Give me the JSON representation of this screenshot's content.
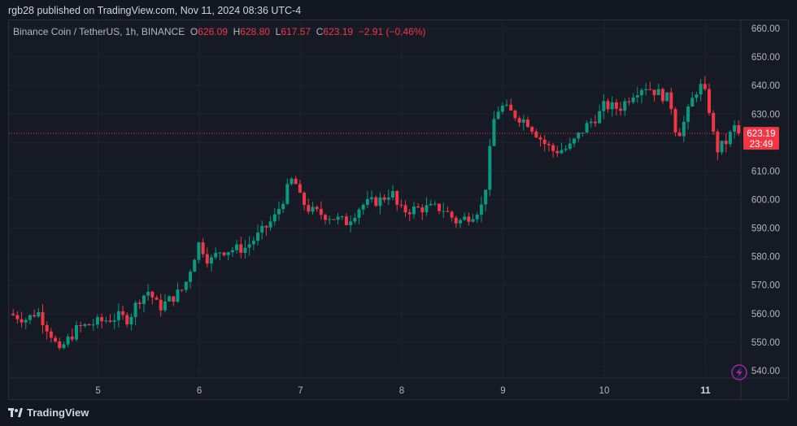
{
  "publisher": "rgb28 published on TradingView.com, Nov 11, 2024 08:36 UTC-4",
  "legend": {
    "symbol": "Binance Coin / TetherUS, 1h, BINANCE",
    "o_label": "O",
    "o": "626.09",
    "h_label": "H",
    "h": "628.80",
    "l_label": "L",
    "l": "617.57",
    "c_label": "C",
    "c": "623.19",
    "change": "−2.91 (−0.46%)"
  },
  "price_label": {
    "price": "623.19",
    "countdown": "23:49"
  },
  "footer": {
    "brand": "TradingView",
    "icon": "tradingview-logo-icon"
  },
  "colors": {
    "up": "#089981",
    "down": "#f23645",
    "bg": "#161a25",
    "grid": "#1f2330"
  },
  "chart_data": {
    "type": "candlestick",
    "interval": "1h",
    "yaxis": {
      "ticks": [
        540,
        550,
        560,
        570,
        580,
        590,
        600,
        610,
        620,
        630,
        640,
        650,
        660
      ],
      "ylim": [
        538,
        662
      ]
    },
    "xaxis": {
      "ticks": [
        "5",
        "6",
        "7",
        "8",
        "9",
        "10",
        "11"
      ],
      "tick_days": [
        5,
        6,
        7,
        8,
        9,
        10,
        11
      ],
      "range_days": [
        4.12,
        11.35
      ]
    },
    "last_price": 623.19,
    "path_keypoints": [
      [
        4.12,
        560
      ],
      [
        4.3,
        558
      ],
      [
        4.4,
        561
      ],
      [
        4.55,
        552
      ],
      [
        4.62,
        546
      ],
      [
        4.66,
        549
      ],
      [
        4.8,
        555
      ],
      [
        5.0,
        557
      ],
      [
        5.2,
        559
      ],
      [
        5.3,
        558
      ],
      [
        5.4,
        565
      ],
      [
        5.5,
        568
      ],
      [
        5.6,
        562
      ],
      [
        5.75,
        566
      ],
      [
        5.85,
        569
      ],
      [
        5.95,
        580
      ],
      [
        6.0,
        585
      ],
      [
        6.1,
        578
      ],
      [
        6.2,
        582
      ],
      [
        6.45,
        583
      ],
      [
        6.6,
        588
      ],
      [
        6.75,
        594
      ],
      [
        6.85,
        602
      ],
      [
        6.93,
        608
      ],
      [
        7.0,
        600
      ],
      [
        7.1,
        596
      ],
      [
        7.3,
        594
      ],
      [
        7.45,
        592
      ],
      [
        7.6,
        598
      ],
      [
        7.8,
        600
      ],
      [
        7.9,
        603
      ],
      [
        7.95,
        598
      ],
      [
        8.0,
        596
      ],
      [
        8.2,
        597
      ],
      [
        8.4,
        597
      ],
      [
        8.55,
        592
      ],
      [
        8.7,
        595
      ],
      [
        8.8,
        598
      ],
      [
        8.85,
        610
      ],
      [
        8.9,
        627
      ],
      [
        8.97,
        633
      ],
      [
        9.1,
        630
      ],
      [
        9.25,
        627
      ],
      [
        9.4,
        620
      ],
      [
        9.5,
        617
      ],
      [
        9.65,
        618
      ],
      [
        9.8,
        625
      ],
      [
        9.95,
        630
      ],
      [
        10.0,
        633
      ],
      [
        10.15,
        632
      ],
      [
        10.3,
        638
      ],
      [
        10.4,
        640
      ],
      [
        10.5,
        638
      ],
      [
        10.65,
        635
      ],
      [
        10.72,
        622
      ],
      [
        10.8,
        628
      ],
      [
        10.9,
        638
      ],
      [
        10.97,
        640
      ],
      [
        11.05,
        630
      ],
      [
        11.1,
        617
      ],
      [
        11.2,
        620
      ],
      [
        11.3,
        626.09
      ],
      [
        11.33,
        623.19
      ]
    ]
  }
}
